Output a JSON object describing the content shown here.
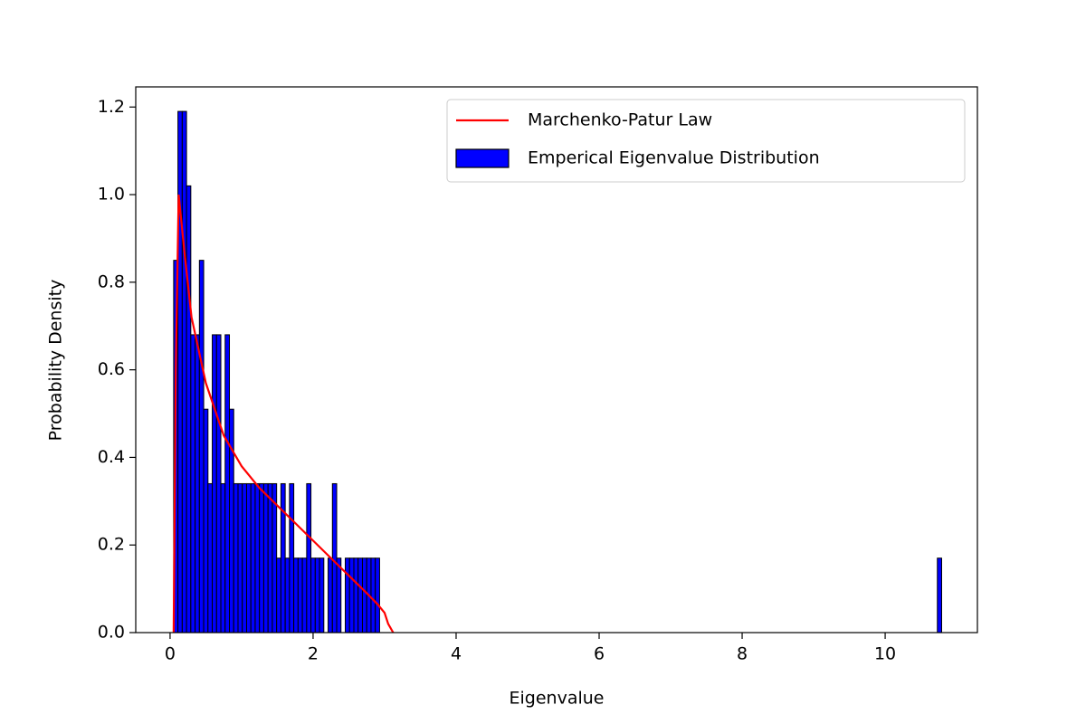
{
  "chart_data": {
    "type": "histogram",
    "xlabel": "Eigenvalue",
    "ylabel": "Probability Density",
    "xlim": [
      -0.48,
      11.29
    ],
    "ylim": [
      0,
      1.246
    ],
    "xticks": [
      0,
      2,
      4,
      6,
      8,
      10
    ],
    "yticks": [
      {
        "value": 0,
        "label": "0.0"
      },
      0.2,
      0.4,
      0.6,
      0.8,
      {
        "value": 1,
        "label": "1.0"
      },
      1.2
    ],
    "legend": "upper right",
    "series": [
      {
        "name": "Marchenko-Patur Law",
        "type": "line",
        "color": "#ff0000",
        "x": [
          0.05,
          0.08,
          0.12,
          0.2,
          0.3,
          0.5,
          0.75,
          1.0,
          1.25,
          1.5,
          1.75,
          2.0,
          2.25,
          2.5,
          2.75,
          2.9,
          3.0,
          3.05,
          3.12
        ],
        "values": [
          0,
          0.6,
          1.0,
          0.87,
          0.72,
          0.57,
          0.45,
          0.38,
          0.33,
          0.29,
          0.25,
          0.21,
          0.17,
          0.13,
          0.09,
          0.065,
          0.045,
          0.02,
          0
        ]
      },
      {
        "name": "Emperical Eigenvalue Distribution",
        "type": "histogram",
        "color": "#0000ff",
        "edgecolor": "#000000",
        "bins": [
          0.05,
          0.11,
          0.17,
          0.23,
          0.29,
          0.35,
          0.41,
          0.47,
          0.53,
          0.59,
          0.65,
          0.71,
          0.77,
          0.83,
          0.89,
          0.95,
          1.01,
          1.07,
          1.13,
          1.19,
          1.25,
          1.31,
          1.37,
          1.43,
          1.49,
          1.55,
          1.61,
          1.67,
          1.73,
          1.79,
          1.85,
          1.91,
          1.97,
          2.03,
          2.09,
          2.15,
          2.21,
          2.27,
          2.33,
          2.39,
          2.45,
          2.51,
          2.57,
          2.63,
          2.69,
          2.75,
          2.81,
          2.87,
          2.93,
          2.99,
          3.05,
          3.11,
          3.17,
          3.23,
          3.29,
          3.35,
          3.41,
          3.47,
          3.53,
          3.59,
          3.65,
          3.71,
          3.77,
          3.83,
          3.89,
          3.95,
          4.01,
          4.07,
          4.13,
          4.19,
          4.25,
          4.31,
          4.37,
          4.43,
          4.49,
          4.55,
          4.61,
          4.67,
          4.73,
          4.79,
          4.85,
          4.91,
          4.97,
          5.03,
          5.09,
          5.15,
          5.21,
          5.27,
          5.33,
          5.39,
          5.45,
          5.51,
          5.57,
          5.63,
          5.69,
          5.75,
          5.81,
          5.87,
          5.93,
          5.99,
          6.05,
          6.11,
          6.17,
          6.23,
          6.29,
          6.35,
          6.41,
          6.47,
          6.53,
          6.59,
          6.65,
          6.71,
          6.77,
          6.83,
          6.89,
          6.95,
          7.01,
          7.07,
          7.13,
          7.19,
          7.25,
          7.31,
          7.37,
          7.43,
          7.49,
          7.55,
          7.61,
          7.67,
          7.73,
          7.79,
          7.85,
          7.91,
          7.97,
          8.03,
          8.09,
          8.15,
          8.21,
          8.27,
          8.33,
          8.39,
          8.45,
          8.51,
          8.57,
          8.63,
          8.69,
          8.75,
          8.81,
          8.87,
          8.93,
          8.99,
          9.05,
          9.11,
          9.17,
          9.23,
          9.29,
          9.35,
          9.41,
          9.47,
          9.53,
          9.59,
          9.65,
          9.71,
          9.77,
          9.83,
          9.89,
          9.95,
          10.01,
          10.07,
          10.13,
          10.19,
          10.25,
          10.31,
          10.37,
          10.43,
          10.49,
          10.55,
          10.61,
          10.67,
          10.73,
          10.79
        ],
        "values": [
          0.85,
          1.19,
          1.19,
          1.02,
          0.68,
          0.68,
          0.85,
          0.51,
          0.34,
          0.68,
          0.68,
          0.34,
          0.68,
          0.51,
          0.34,
          0.34,
          0.34,
          0.34,
          0.34,
          0.34,
          0.34,
          0.34,
          0.34,
          0.34,
          0.17,
          0.34,
          0.17,
          0.34,
          0.17,
          0.17,
          0.17,
          0.34,
          0.17,
          0.17,
          0.17,
          0,
          0.17,
          0.34,
          0.17,
          0,
          0.17,
          0.17,
          0.17,
          0.17,
          0.17,
          0.17,
          0.17,
          0.17,
          0,
          0,
          0,
          0,
          0,
          0,
          0,
          0,
          0,
          0,
          0,
          0,
          0,
          0,
          0,
          0,
          0,
          0,
          0,
          0,
          0,
          0,
          0,
          0,
          0,
          0,
          0,
          0,
          0,
          0,
          0,
          0,
          0,
          0,
          0,
          0,
          0,
          0,
          0,
          0,
          0,
          0,
          0,
          0,
          0,
          0,
          0,
          0,
          0,
          0,
          0,
          0,
          0,
          0,
          0,
          0,
          0,
          0,
          0,
          0,
          0,
          0,
          0,
          0,
          0,
          0,
          0,
          0,
          0,
          0,
          0,
          0,
          0,
          0,
          0,
          0,
          0,
          0,
          0,
          0,
          0,
          0,
          0,
          0,
          0,
          0,
          0,
          0,
          0,
          0,
          0,
          0,
          0,
          0,
          0,
          0,
          0,
          0,
          0,
          0,
          0,
          0,
          0,
          0,
          0,
          0,
          0,
          0,
          0,
          0,
          0,
          0,
          0,
          0,
          0,
          0,
          0,
          0,
          0,
          0,
          0,
          0,
          0,
          0,
          0,
          0,
          0,
          0,
          0,
          0,
          0.17
        ]
      }
    ]
  }
}
